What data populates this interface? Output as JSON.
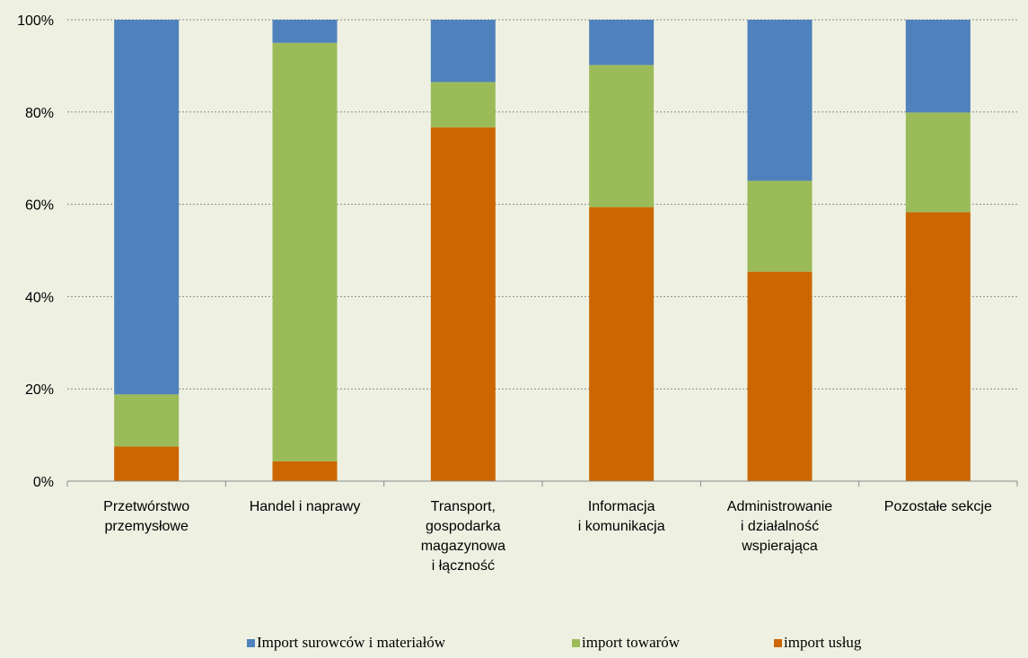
{
  "chart_data": {
    "type": "bar",
    "stacked": true,
    "percent": true,
    "categories": [
      [
        "Przetwórstwo",
        "przemysłowe"
      ],
      [
        "Handel i naprawy"
      ],
      [
        "Transport,",
        "gospodarka",
        "magazynowa",
        "i łączność"
      ],
      [
        "Informacja",
        "i komunikacja"
      ],
      [
        "Administrowanie",
        "i działalność",
        "wspierająca"
      ],
      [
        "Pozostałe sekcje"
      ]
    ],
    "series": [
      {
        "name": "import usług",
        "color": "#CC6600",
        "values": [
          7.5,
          4.3,
          76.7,
          59.4,
          45.4,
          58.3
        ]
      },
      {
        "name": "import towarów",
        "color": "#9BBB59",
        "values": [
          11.3,
          90.7,
          9.8,
          30.8,
          19.7,
          21.6
        ]
      },
      {
        "name": "Import surowców i materiałów",
        "color": "#4F81BD",
        "values": [
          81.2,
          5.0,
          13.5,
          9.8,
          34.9,
          20.1
        ]
      }
    ],
    "legend_order": [
      2,
      1,
      0
    ],
    "y_ticks": [
      "0%",
      "20%",
      "40%",
      "60%",
      "80%",
      "100%"
    ],
    "ylim": [
      0,
      100
    ],
    "grid": true,
    "legend_position": "bottom"
  }
}
